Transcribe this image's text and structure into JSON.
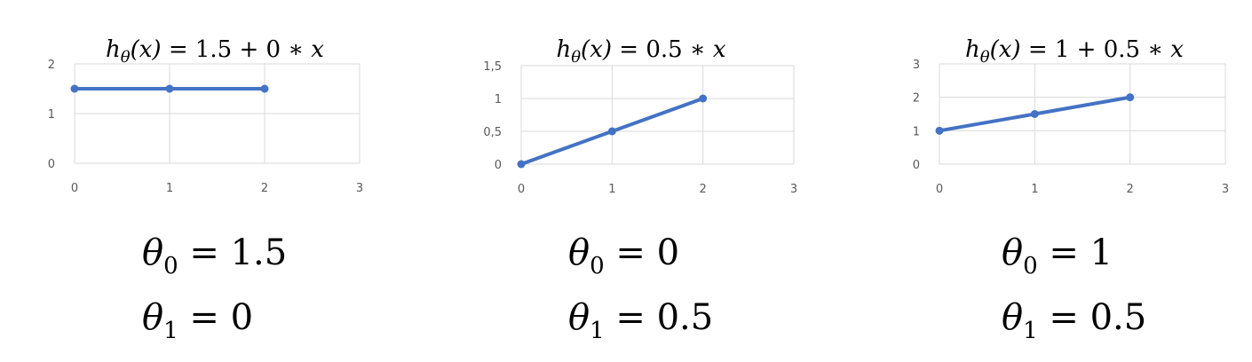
{
  "colors": {
    "series": "#4472c4",
    "grid": "#d9d9d9",
    "tick_text": "#595959"
  },
  "chart_data": [
    {
      "type": "line",
      "title": {
        "fn": "h",
        "sub": "θ",
        "args": "(x)",
        "rhs": "= 1.5 + 0 ∗ ",
        "var": "x"
      },
      "x_ticks": [
        "0",
        "1",
        "2",
        "3"
      ],
      "y_ticks": [
        "0",
        "1",
        "2"
      ],
      "xlim": [
        0,
        3
      ],
      "ylim": [
        0,
        2
      ],
      "grid": true,
      "series": [
        {
          "x": [
            0,
            1,
            2
          ],
          "y": [
            1.5,
            1.5,
            1.5
          ]
        }
      ],
      "params": [
        {
          "sym": "θ",
          "sub": "0",
          "rhs": " = 1.5"
        },
        {
          "sym": "θ",
          "sub": "1",
          "rhs": " = 0"
        }
      ]
    },
    {
      "type": "line",
      "title": {
        "fn": "h",
        "sub": "θ",
        "args": "(x)",
        "rhs": "= 0.5 ∗ ",
        "var": "x"
      },
      "x_ticks": [
        "0",
        "1",
        "2",
        "3"
      ],
      "y_ticks": [
        "0",
        "0,5",
        "1",
        "1,5"
      ],
      "xlim": [
        0,
        3
      ],
      "ylim": [
        0,
        1.5
      ],
      "grid": true,
      "series": [
        {
          "x": [
            0,
            1,
            2
          ],
          "y": [
            0,
            0.5,
            1
          ]
        }
      ],
      "params": [
        {
          "sym": "θ",
          "sub": "0",
          "rhs": " = 0"
        },
        {
          "sym": "θ",
          "sub": "1",
          "rhs": " = 0.5"
        }
      ]
    },
    {
      "type": "line",
      "title": {
        "fn": "h",
        "sub": "θ",
        "args": "(x)",
        "rhs": "= 1 + 0.5 ∗ ",
        "var": "x"
      },
      "x_ticks": [
        "0",
        "1",
        "2",
        "3"
      ],
      "y_ticks": [
        "0",
        "1",
        "2",
        "3"
      ],
      "xlim": [
        0,
        3
      ],
      "ylim": [
        0,
        3
      ],
      "grid": true,
      "series": [
        {
          "x": [
            0,
            1,
            2
          ],
          "y": [
            1,
            1.5,
            2
          ]
        }
      ],
      "params": [
        {
          "sym": "θ",
          "sub": "0",
          "rhs": " = 1"
        },
        {
          "sym": "θ",
          "sub": "1",
          "rhs": " = 0.5"
        }
      ]
    }
  ]
}
